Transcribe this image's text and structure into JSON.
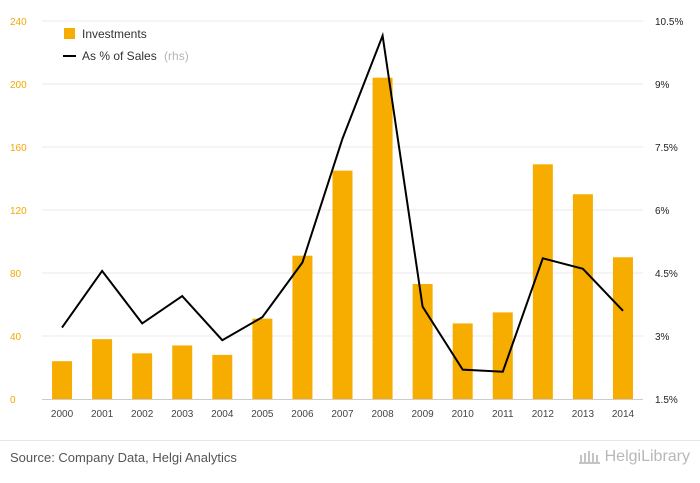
{
  "chart_data": {
    "type": "bar",
    "categories": [
      "2000",
      "2001",
      "2002",
      "2003",
      "2004",
      "2005",
      "2006",
      "2007",
      "2008",
      "2009",
      "2010",
      "2011",
      "2012",
      "2013",
      "2014"
    ],
    "series": [
      {
        "name": "Investments",
        "type": "bar",
        "axis": "left",
        "color": "#f7ad00",
        "values": [
          24,
          38,
          29,
          34,
          28,
          51,
          91,
          145,
          204,
          73,
          48,
          55,
          149,
          130,
          90
        ]
      },
      {
        "name": "As % of Sales",
        "name_note": "(rhs)",
        "type": "line",
        "axis": "right",
        "color": "#000000",
        "values": [
          3.2,
          4.55,
          3.3,
          3.95,
          2.9,
          3.45,
          4.75,
          7.7,
          10.15,
          3.7,
          2.2,
          2.15,
          4.85,
          4.6,
          3.6
        ]
      }
    ],
    "y_left": {
      "min": 0,
      "max": 240,
      "ticks": [
        "0",
        "40",
        "80",
        "120",
        "160",
        "200",
        "240"
      ]
    },
    "y_right": {
      "min": 1.5,
      "max": 10.5,
      "ticks": [
        "1.5%",
        "3%",
        "4.5%",
        "6%",
        "7.5%",
        "9%",
        "10.5%"
      ]
    },
    "grid": true,
    "legend_position": "top-left"
  },
  "footer": {
    "source": "Source: Company Data, Helgi Analytics",
    "brand": "HelgiLibrary"
  },
  "colors": {
    "left_axis_ticks": "#f5a800",
    "grid": "#e9e9e9"
  }
}
